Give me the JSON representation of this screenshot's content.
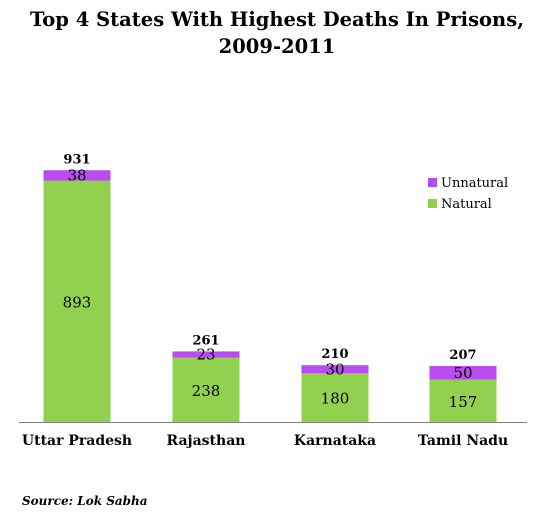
{
  "chart": {
    "title_line1": "Top 4 States With Highest Deaths In Prisons,",
    "title_line2": "2009-2011",
    "source": "Source: Lok Sabha"
  },
  "colors": {
    "natural": "#92d050",
    "unnatural": "#b94cf0",
    "axis": "#7f7f7f"
  },
  "chart_data": {
    "type": "bar",
    "stacked": true,
    "categories": [
      "Uttar Pradesh",
      "Rajasthan",
      "Karnataka",
      "Tamil Nadu"
    ],
    "series": [
      {
        "name": "Natural",
        "values": [
          893,
          238,
          180,
          157
        ]
      },
      {
        "name": "Unnatural",
        "values": [
          38,
          23,
          30,
          50
        ]
      }
    ],
    "totals": [
      931,
      261,
      210,
      207
    ],
    "legend": [
      "Unnatural",
      "Natural"
    ],
    "legend_position": "top-right",
    "grid": false,
    "ylim": [
      0,
      1000
    ]
  }
}
